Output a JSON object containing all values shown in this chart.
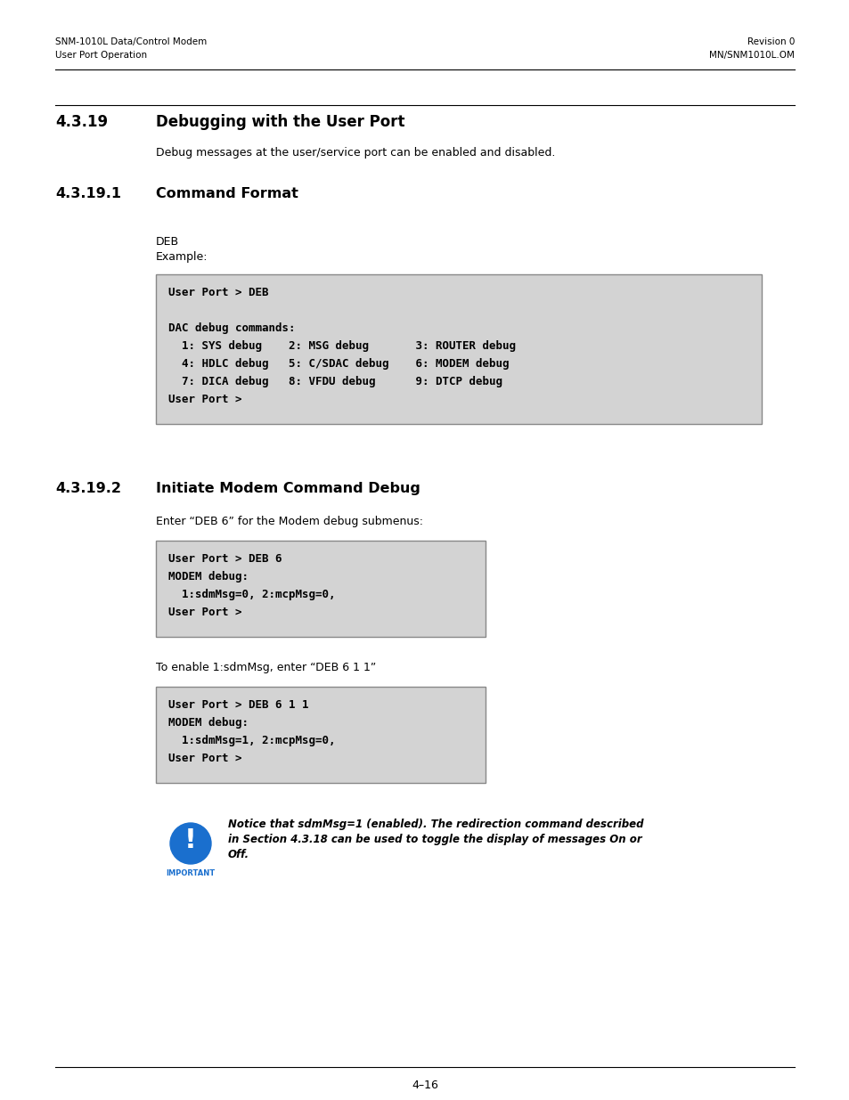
{
  "page_bg": "#ffffff",
  "header_left_line1": "SNM-1010L Data/Control Modem",
  "header_left_line2": "User Port Operation",
  "header_right_line1": "Revision 0",
  "header_right_line2": "MN/SNM1010L.OM",
  "section419_num": "4.3.19",
  "section419_title": "Debugging with the User Port",
  "section419_body": "Debug messages at the user/service port can be enabled and disabled.",
  "sub1_num": "4.3.19.1",
  "sub1_title": "Command Format",
  "deb_label": "DEB",
  "example_label": "Example:",
  "code_box1_lines": [
    "User Port > DEB",
    "",
    "DAC debug commands:",
    "  1: SYS debug    2: MSG debug       3: ROUTER debug",
    "  4: HDLC debug   5: C/SDAC debug    6: MODEM debug",
    "  7: DICA debug   8: VFDU debug      9: DTCP debug",
    "User Port >"
  ],
  "sub2_num": "4.3.19.2",
  "sub2_title": "Initiate Modem Command Debug",
  "intro2": "Enter “DEB 6” for the Modem debug submenus:",
  "code_box2_lines": [
    "User Port > DEB 6",
    "MODEM debug:",
    "  1:sdmMsg=0, 2:mcpMsg=0,",
    "User Port >"
  ],
  "enable_text": "To enable 1:sdmMsg, enter “DEB 6 1 1”",
  "code_box3_lines": [
    "User Port > DEB 6 1 1",
    "MODEM debug:",
    "  1:sdmMsg=1, 2:mcpMsg=0,",
    "User Port >"
  ],
  "notice_line1": "Notice that sdmMsg=1 (enabled). The redirection command described",
  "notice_line2": "in Section 4.3.18 can be used to toggle the display of messages On or",
  "notice_line3": "Off.",
  "important_label": "IMPORTANT",
  "footer_line": "4–16",
  "code_bg": "#d3d3d3",
  "code_border": "#888888",
  "icon_color": "#1a6fce",
  "icon_label_color": "#1a6fce"
}
